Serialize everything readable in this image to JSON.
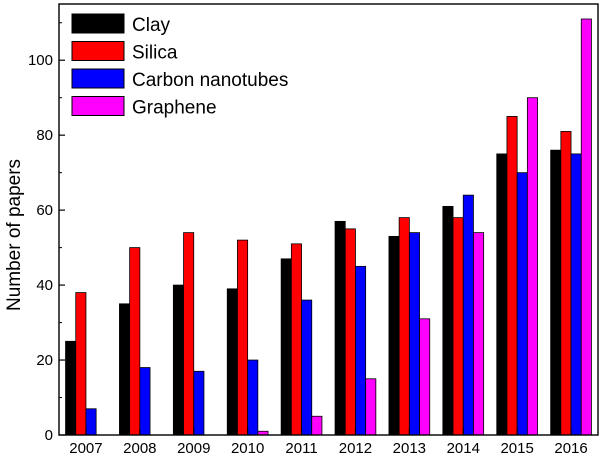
{
  "chart_data": {
    "type": "bar",
    "title": "",
    "xlabel": "",
    "ylabel": "Number of papers",
    "ylim": [
      0,
      115
    ],
    "yticks": [
      0,
      20,
      40,
      60,
      80,
      100
    ],
    "categories": [
      "2007",
      "2008",
      "2009",
      "2010",
      "2011",
      "2012",
      "2013",
      "2014",
      "2015",
      "2016"
    ],
    "legend_position": "top-left",
    "series": [
      {
        "name": "Clay",
        "color": "#000000",
        "values": [
          25,
          35,
          40,
          39,
          47,
          57,
          53,
          61,
          75,
          76
        ]
      },
      {
        "name": "Silica",
        "color": "#ff0000",
        "values": [
          38,
          50,
          54,
          52,
          51,
          55,
          58,
          58,
          85,
          81
        ]
      },
      {
        "name": "Carbon nanotubes",
        "color": "#0000ff",
        "values": [
          7,
          18,
          17,
          20,
          36,
          45,
          54,
          64,
          70,
          75
        ]
      },
      {
        "name": "Graphene",
        "color": "#ff00ff",
        "values": [
          0,
          0,
          0,
          1,
          5,
          15,
          31,
          54,
          90,
          111
        ]
      }
    ]
  }
}
